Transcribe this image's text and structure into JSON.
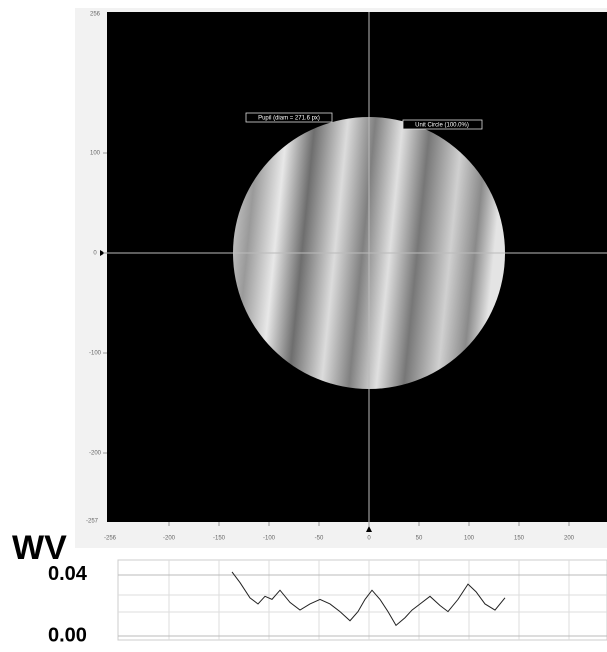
{
  "image_view": {
    "xlim": [
      -262,
      238
    ],
    "ylim": [
      -269,
      241
    ],
    "xticks": [
      -200,
      -150,
      -100,
      -50,
      0,
      50,
      100,
      150,
      200
    ],
    "yticks": [
      100,
      0,
      -100,
      -200
    ],
    "x_min_label": "-256",
    "y_max_label": "256",
    "y_min_label": "-257",
    "pupil_label": "Pupil (diam = 271.6 px)",
    "unit_circle_label": "Unit Circle (100.0%)"
  },
  "profile": {
    "type": "line",
    "label": "WV",
    "ylim": [
      -0.0026,
      0.0498
    ],
    "yticks": [
      {
        "value": 0.04,
        "label": "0.04"
      },
      {
        "value": 0,
        "label": "0.00"
      }
    ],
    "color": "#222222",
    "x": [
      -137,
      -129,
      -119,
      -111,
      -104,
      -97,
      -89,
      -79,
      -69,
      -59,
      -49,
      -39,
      -29,
      -19,
      -11,
      -4,
      3,
      11,
      19,
      27,
      36,
      43,
      51,
      61,
      71,
      79,
      89,
      99,
      107,
      116,
      126,
      136
    ],
    "values": [
      0.042,
      0.035,
      0.025,
      0.021,
      0.026,
      0.024,
      0.03,
      0.022,
      0.017,
      0.021,
      0.024,
      0.021,
      0.016,
      0.01,
      0.016,
      0.024,
      0.03,
      0.024,
      0.016,
      0.007,
      0.012,
      0.017,
      0.021,
      0.026,
      0.02,
      0.016,
      0.024,
      0.034,
      0.029,
      0.021,
      0.017,
      0.025
    ]
  }
}
